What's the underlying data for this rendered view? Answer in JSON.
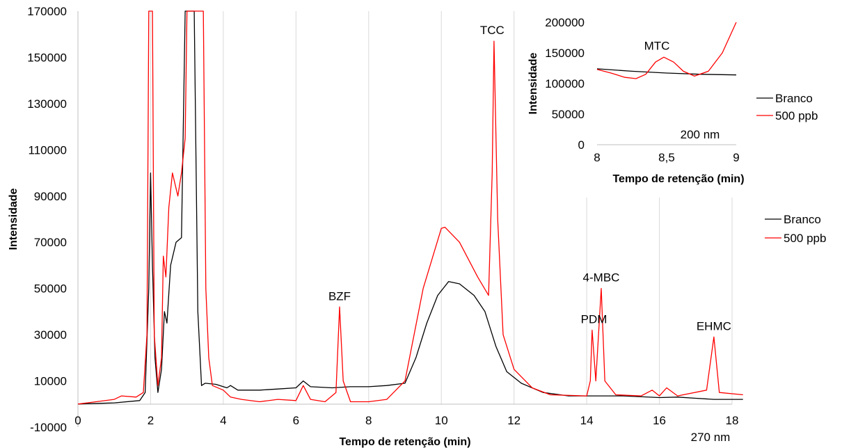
{
  "chart_data": [
    {
      "type": "line",
      "xlabel": "Tempo de retenção (min)",
      "ylabel": "Intensidade",
      "xlim": [
        0,
        18
      ],
      "ylim": [
        -10000,
        170000
      ],
      "x_ticks": [
        "0",
        "2",
        "4",
        "6",
        "8",
        "10",
        "12",
        "14",
        "16",
        "18"
      ],
      "y_ticks": [
        "-10000",
        "10000",
        "30000",
        "50000",
        "70000",
        "90000",
        "110000",
        "130000",
        "150000",
        "170000"
      ],
      "x_tick_values": [
        0,
        2,
        4,
        6,
        8,
        10,
        12,
        14,
        16,
        18
      ],
      "y_tick_values": [
        -10000,
        10000,
        30000,
        50000,
        70000,
        90000,
        110000,
        130000,
        150000,
        170000
      ],
      "grid": "vertical",
      "legend_position": "right",
      "wavelength_note": "270 nm",
      "annotations": [
        {
          "text": "BZF",
          "x": 7.2,
          "y": 45000
        },
        {
          "text": "TCC",
          "x": 11.4,
          "y": 160000
        },
        {
          "text": "PDM",
          "x": 14.2,
          "y": 35000
        },
        {
          "text": "4-MBC",
          "x": 14.4,
          "y": 53000
        },
        {
          "text": "EHMC",
          "x": 17.5,
          "y": 32000
        }
      ],
      "series": [
        {
          "name": "Branco",
          "color": "#000000",
          "points": [
            [
              0,
              0
            ],
            [
              1.0,
              500
            ],
            [
              1.7,
              1500
            ],
            [
              1.85,
              5000
            ],
            [
              1.95,
              50000
            ],
            [
              2.0,
              100000
            ],
            [
              2.05,
              60000
            ],
            [
              2.12,
              20000
            ],
            [
              2.2,
              5000
            ],
            [
              2.3,
              15000
            ],
            [
              2.38,
              40000
            ],
            [
              2.45,
              35000
            ],
            [
              2.55,
              60000
            ],
            [
              2.7,
              70000
            ],
            [
              2.85,
              72000
            ],
            [
              2.95,
              170000
            ],
            [
              3.2,
              170000
            ],
            [
              3.3,
              40000
            ],
            [
              3.4,
              8000
            ],
            [
              3.5,
              9000
            ],
            [
              3.8,
              8500
            ],
            [
              4.1,
              7000
            ],
            [
              4.2,
              8000
            ],
            [
              4.4,
              6000
            ],
            [
              5.0,
              6000
            ],
            [
              5.5,
              6500
            ],
            [
              6.0,
              7000
            ],
            [
              6.2,
              10000
            ],
            [
              6.4,
              7500
            ],
            [
              7.0,
              7000
            ],
            [
              7.5,
              7500
            ],
            [
              8.0,
              7500
            ],
            [
              8.5,
              8000
            ],
            [
              9.0,
              9000
            ],
            [
              9.3,
              20000
            ],
            [
              9.6,
              35000
            ],
            [
              9.9,
              47000
            ],
            [
              10.2,
              53000
            ],
            [
              10.5,
              52000
            ],
            [
              10.9,
              47000
            ],
            [
              11.2,
              40000
            ],
            [
              11.5,
              25000
            ],
            [
              11.8,
              14000
            ],
            [
              12.2,
              9000
            ],
            [
              12.8,
              5000
            ],
            [
              13.5,
              3500
            ],
            [
              15.0,
              3500
            ],
            [
              16.0,
              2800
            ],
            [
              16.5,
              3000
            ],
            [
              17.0,
              2500
            ],
            [
              17.5,
              2000
            ],
            [
              18.3,
              2000
            ]
          ]
        },
        {
          "name": "500 ppb",
          "color": "#ff0000",
          "points": [
            [
              0,
              0
            ],
            [
              0.5,
              1000
            ],
            [
              1.0,
              2000
            ],
            [
              1.2,
              3500
            ],
            [
              1.6,
              3000
            ],
            [
              1.8,
              5000
            ],
            [
              1.9,
              30000
            ],
            [
              1.95,
              170000
            ],
            [
              2.05,
              170000
            ],
            [
              2.1,
              30000
            ],
            [
              2.2,
              8000
            ],
            [
              2.3,
              20000
            ],
            [
              2.35,
              64000
            ],
            [
              2.42,
              55000
            ],
            [
              2.5,
              85000
            ],
            [
              2.6,
              100000
            ],
            [
              2.75,
              90000
            ],
            [
              2.85,
              100000
            ],
            [
              2.95,
              115000
            ],
            [
              3.0,
              170000
            ],
            [
              3.45,
              170000
            ],
            [
              3.52,
              50000
            ],
            [
              3.6,
              20000
            ],
            [
              3.7,
              8000
            ],
            [
              4.0,
              6000
            ],
            [
              4.2,
              3000
            ],
            [
              4.5,
              2000
            ],
            [
              5.0,
              1000
            ],
            [
              5.5,
              2000
            ],
            [
              6.0,
              1500
            ],
            [
              6.2,
              8000
            ],
            [
              6.4,
              2000
            ],
            [
              6.8,
              1000
            ],
            [
              7.1,
              5000
            ],
            [
              7.2,
              42000
            ],
            [
              7.3,
              10000
            ],
            [
              7.5,
              1000
            ],
            [
              8.0,
              1000
            ],
            [
              8.5,
              2000
            ],
            [
              9.0,
              10000
            ],
            [
              9.5,
              50000
            ],
            [
              10.0,
              76000
            ],
            [
              10.1,
              76500
            ],
            [
              10.5,
              70000
            ],
            [
              11.0,
              55000
            ],
            [
              11.3,
              47000
            ],
            [
              11.4,
              100000
            ],
            [
              11.45,
              157000
            ],
            [
              11.55,
              80000
            ],
            [
              11.7,
              30000
            ],
            [
              12.0,
              15000
            ],
            [
              12.5,
              7000
            ],
            [
              13.0,
              4000
            ],
            [
              14.0,
              3500
            ],
            [
              14.1,
              10000
            ],
            [
              14.15,
              32000
            ],
            [
              14.25,
              10000
            ],
            [
              14.4,
              50000
            ],
            [
              14.5,
              10000
            ],
            [
              14.8,
              4000
            ],
            [
              15.5,
              3500
            ],
            [
              15.8,
              6000
            ],
            [
              16.0,
              3500
            ],
            [
              16.2,
              7000
            ],
            [
              16.5,
              3500
            ],
            [
              17.3,
              6000
            ],
            [
              17.5,
              29000
            ],
            [
              17.65,
              5000
            ],
            [
              18.3,
              4000
            ]
          ]
        }
      ]
    },
    {
      "type": "line",
      "xlabel": "Tempo de retenção (min)",
      "ylabel": "Intensidade",
      "xlim": [
        8,
        9
      ],
      "ylim": [
        0,
        200000
      ],
      "x_ticks": [
        "8",
        "8,5",
        "9"
      ],
      "y_ticks": [
        "0",
        "50000",
        "100000",
        "150000",
        "200000"
      ],
      "x_tick_values": [
        8,
        8.5,
        9
      ],
      "y_tick_values": [
        0,
        50000,
        100000,
        150000,
        200000
      ],
      "grid": "none",
      "legend_position": "right",
      "wavelength_note": "200 nm",
      "annotations": [
        {
          "text": "MTC",
          "x": 8.43,
          "y": 155000
        }
      ],
      "series": [
        {
          "name": "Branco",
          "color": "#000000",
          "points": [
            [
              8.0,
              124000
            ],
            [
              8.25,
              120000
            ],
            [
              8.5,
              117000
            ],
            [
              8.75,
              115000
            ],
            [
              9.0,
              114000
            ]
          ]
        },
        {
          "name": "500 ppb",
          "color": "#ff0000",
          "points": [
            [
              8.0,
              123000
            ],
            [
              8.1,
              117000
            ],
            [
              8.2,
              110000
            ],
            [
              8.28,
              108000
            ],
            [
              8.35,
              115000
            ],
            [
              8.42,
              135000
            ],
            [
              8.48,
              143000
            ],
            [
              8.55,
              135000
            ],
            [
              8.62,
              120000
            ],
            [
              8.7,
              112000
            ],
            [
              8.8,
              120000
            ],
            [
              8.9,
              150000
            ],
            [
              9.0,
              200000
            ]
          ]
        }
      ]
    }
  ]
}
